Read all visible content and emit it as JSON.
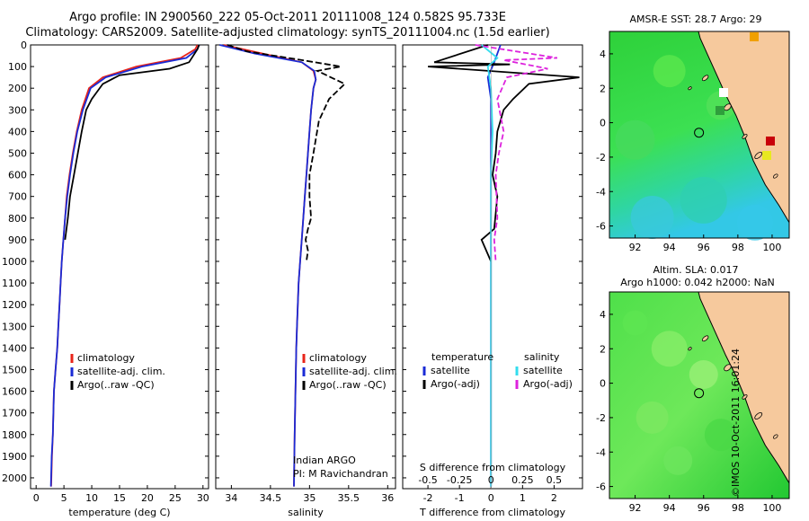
{
  "header": {
    "line1": "Argo profile: IN 2900560_222 05-Oct-2011 20111008_124 0.582S 95.733E",
    "line2": "Climatology: CARS2009. Satellite-adjusted climatology: synTS_20111004.nc (1.5d earlier)"
  },
  "colors": {
    "climatology": "#e8241a",
    "satellite": "#1a2bd6",
    "argo": "#000000",
    "sal_satellite": "#33ddee",
    "sal_argo": "#dd22dd",
    "land": "#f6c99d"
  },
  "chart_data": [
    {
      "type": "line",
      "id": "temperature",
      "xlabel": "temperature (deg C)",
      "xlim": [
        -1,
        31
      ],
      "ylim": [
        0,
        2050
      ],
      "y_reversed": true,
      "xticks": [
        0,
        5,
        10,
        15,
        20,
        25,
        30
      ],
      "yticks": [
        0,
        100,
        200,
        300,
        400,
        500,
        600,
        700,
        800,
        900,
        1000,
        1100,
        1200,
        1300,
        1400,
        1500,
        1600,
        1700,
        1800,
        1900,
        2000
      ],
      "legend": [
        "climatology",
        "satellite-adj. clim.",
        "Argo(..raw -QC)"
      ],
      "series": [
        {
          "name": "climatology",
          "color": "#e8241a",
          "x": [
            29,
            28.6,
            26,
            18,
            12,
            9.5,
            8.2,
            7.3,
            6.6,
            6,
            5.5,
            5.2,
            4.9,
            4.6,
            4.4,
            4.2,
            4,
            3.8,
            3.5,
            3.2,
            3,
            2.85,
            2.7
          ],
          "y": [
            0,
            20,
            60,
            100,
            150,
            200,
            300,
            400,
            500,
            600,
            700,
            800,
            900,
            1000,
            1100,
            1200,
            1300,
            1400,
            1500,
            1600,
            1800,
            1900,
            2040
          ]
        },
        {
          "name": "satellite-adj. clim.",
          "color": "#1a2bd6",
          "x": [
            29.3,
            29,
            27,
            19,
            12.5,
            9.8,
            8.4,
            7.4,
            6.7,
            6.1,
            5.6,
            5.2,
            4.9,
            4.6,
            4.4,
            4.2,
            4,
            3.8,
            3.5,
            3.2,
            3,
            2.8,
            2.65
          ],
          "y": [
            0,
            20,
            60,
            100,
            150,
            200,
            300,
            400,
            500,
            600,
            700,
            800,
            900,
            1000,
            1100,
            1200,
            1300,
            1400,
            1500,
            1600,
            1800,
            1900,
            2040
          ]
        },
        {
          "name": "Argo(..raw -QC)",
          "color": "#000000",
          "x": [
            29.3,
            29,
            27.5,
            24,
            15,
            12,
            10,
            9,
            8.2,
            7.5,
            6.8,
            6.1,
            5.7,
            5.2
          ],
          "y": [
            0,
            20,
            80,
            110,
            140,
            180,
            250,
            300,
            400,
            500,
            600,
            700,
            800,
            900
          ]
        }
      ]
    },
    {
      "type": "line",
      "id": "salinity",
      "xlabel": "salinity",
      "xlim": [
        33.8,
        36.1
      ],
      "ylim": [
        0,
        2050
      ],
      "y_reversed": true,
      "xticks": [
        34,
        34.5,
        35,
        35.5,
        36
      ],
      "legend": [
        "climatology",
        "satellite-adj. clim.",
        "Argo(..raw -QC)"
      ],
      "annotation": [
        "Indian ARGO",
        "PI: M Ravichandran"
      ],
      "series": [
        {
          "name": "climatology",
          "color": "#e8241a",
          "x": [
            33.9,
            34.4,
            34.9,
            35.05,
            35.08,
            35.05,
            35.02,
            35,
            34.98,
            34.96,
            34.94,
            34.92,
            34.9,
            34.88,
            34.86,
            34.85,
            34.84,
            34.83,
            34.82,
            34.81,
            34.8
          ],
          "y": [
            0,
            40,
            80,
            120,
            160,
            200,
            300,
            400,
            500,
            600,
            700,
            800,
            900,
            1000,
            1100,
            1200,
            1300,
            1400,
            1600,
            1800,
            2040
          ]
        },
        {
          "name": "satellite-adj. clim.",
          "color": "#1a2bd6",
          "x": [
            33.85,
            34.3,
            34.9,
            35.06,
            35.08,
            35.05,
            35.02,
            35,
            34.98,
            34.96,
            34.94,
            34.92,
            34.9,
            34.88,
            34.86,
            34.85,
            34.84,
            34.83,
            34.82,
            34.81,
            34.8
          ],
          "y": [
            0,
            40,
            80,
            120,
            160,
            200,
            300,
            400,
            500,
            600,
            700,
            800,
            900,
            1000,
            1100,
            1200,
            1300,
            1400,
            1600,
            1800,
            2040
          ]
        },
        {
          "name": "Argo(..raw -QC)",
          "color": "#000000",
          "x": [
            33.95,
            34.2,
            34.9,
            35.4,
            35.1,
            35.45,
            35.25,
            35.12,
            35.05,
            35,
            35,
            35.02,
            34.98,
            34.95,
            34.98,
            34.96
          ],
          "y": [
            0,
            30,
            70,
            100,
            120,
            180,
            250,
            350,
            500,
            600,
            700,
            800,
            850,
            900,
            950,
            1000
          ]
        }
      ]
    },
    {
      "type": "line",
      "id": "difference",
      "xlabel": "T difference from climatology",
      "xlabel_top": "S difference from climatology",
      "xlim": [
        -2.8,
        2.9
      ],
      "ylim": [
        0,
        2050
      ],
      "y_reversed": true,
      "xticks": [
        -2,
        -1,
        0,
        1,
        2
      ],
      "xticks_top": [
        "-0.5",
        "-0.25",
        "0",
        "0.25",
        "0.5"
      ],
      "legend_groups": [
        "temperature",
        "salinity"
      ],
      "legend": [
        "satellite",
        "Argo(-adj)",
        "satellite",
        "Argo(-adj)"
      ],
      "series": [
        {
          "name": "satellite",
          "group": "temperature",
          "color": "#1a2bd6",
          "x": [
            0.3,
            0.1,
            -0.1,
            0,
            0,
            0,
            0,
            0,
            0,
            0
          ],
          "y": [
            0,
            80,
            150,
            250,
            400,
            600,
            800,
            1000,
            1500,
            2040
          ]
        },
        {
          "name": "Argo(-adj)",
          "group": "temperature",
          "color": "#000000",
          "x": [
            -0.1,
            -1.8,
            0.6,
            -2,
            2.8,
            1.2,
            0.7,
            0.4,
            0.2,
            0.15,
            0.05,
            0.2,
            0.1,
            -0.3,
            0
          ],
          "y": [
            0,
            80,
            90,
            100,
            150,
            180,
            250,
            300,
            400,
            500,
            600,
            700,
            850,
            900,
            1000
          ]
        },
        {
          "name": "satellite",
          "group": "salinity",
          "color": "#33ddee",
          "x": [
            -0.3,
            0.2,
            -0.1,
            0,
            0.05,
            0,
            0,
            0,
            0
          ],
          "y": [
            0,
            60,
            100,
            200,
            400,
            600,
            800,
            1000,
            2040
          ]
        },
        {
          "name": "Argo(-adj)",
          "group": "salinity",
          "color": "#dd22dd",
          "x": [
            -0.5,
            2.1,
            0.4,
            1.8,
            0.5,
            0.2,
            0.4,
            0.25,
            0.15,
            0.2,
            0.1,
            0.15
          ],
          "y": [
            0,
            60,
            70,
            110,
            150,
            250,
            400,
            500,
            600,
            800,
            900,
            1000
          ]
        }
      ]
    },
    {
      "type": "heatmap",
      "id": "sst-map",
      "title": "AMSR-E SST: 28.7 Argo: 29",
      "xticks": [
        92,
        94,
        96,
        98,
        100
      ],
      "yticks": [
        4,
        2,
        0,
        -2,
        -4,
        -6
      ],
      "xlim": [
        90.5,
        101
      ],
      "ylim": [
        -6.7,
        5.3
      ],
      "marker": {
        "lon": 95.73,
        "lat": -0.58
      }
    },
    {
      "type": "heatmap",
      "id": "sla-map",
      "title": "Altim. SLA: 0.017",
      "subtitle": "Argo h1000: 0.042 h2000: NaN",
      "xticks": [
        92,
        94,
        96,
        98,
        100
      ],
      "yticks": [
        4,
        2,
        0,
        -2,
        -4,
        -6
      ],
      "xlim": [
        90.5,
        101
      ],
      "ylim": [
        -6.7,
        5.3
      ],
      "marker": {
        "lon": 95.73,
        "lat": -0.58
      }
    }
  ],
  "footer": {
    "stamp": "©IMOS 10-Oct-2011 16:01:24"
  }
}
